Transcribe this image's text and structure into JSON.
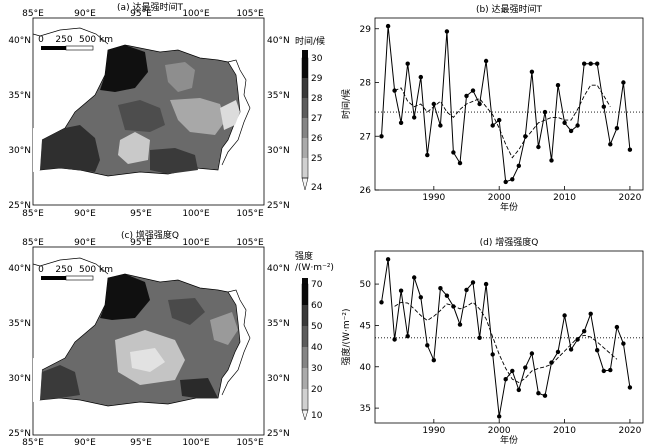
{
  "maps": [
    {
      "title": "(a) 达最强时间T",
      "lon_ticks": [
        "85°E",
        "90°E",
        "95°E",
        "100°E",
        "105°E"
      ],
      "lat_ticks_left": [
        "40°N",
        "35°N",
        "30°N",
        "25°N"
      ],
      "lat_ticks_right": [
        "40°N",
        "35°N",
        "30°N",
        "25°N"
      ],
      "scale_labels": [
        "0",
        "250",
        "500 km"
      ],
      "colorbar_title": "时间/候",
      "colorbar_ticks": [
        "30",
        "29",
        "28",
        "27",
        "26",
        "25",
        "24"
      ]
    },
    {
      "title": "(c) 增强强度Q",
      "lon_ticks": [
        "85°E",
        "90°E",
        "95°E",
        "100°E",
        "105°E"
      ],
      "lat_ticks_left": [
        "40°N",
        "35°N",
        "30°N",
        "25°N"
      ],
      "lat_ticks_right": [
        "40°N",
        "35°N",
        "30°N",
        "25°N"
      ],
      "scale_labels": [
        "0",
        "250",
        "500 km"
      ],
      "colorbar_title_line1": "强度",
      "colorbar_title_line2": "/(W·m⁻²)",
      "colorbar_ticks": [
        "70",
        "60",
        "50",
        "40",
        "30",
        "20",
        "10"
      ]
    }
  ],
  "chart_data": [
    {
      "type": "line",
      "title": "(b) 达最强时间T",
      "xlabel": "年份",
      "ylabel": "时间/候",
      "xlim": [
        1981,
        2022
      ],
      "ylim": [
        26,
        29.2
      ],
      "xticks": [
        1990,
        2000,
        2010,
        2020
      ],
      "yticks": [
        26,
        27,
        28,
        29
      ],
      "x": [
        1982,
        1983,
        1984,
        1985,
        1986,
        1987,
        1988,
        1989,
        1990,
        1991,
        1992,
        1993,
        1994,
        1995,
        1996,
        1997,
        1998,
        1999,
        2000,
        2001,
        2002,
        2003,
        2004,
        2005,
        2006,
        2007,
        2008,
        2009,
        2010,
        2011,
        2012,
        2013,
        2014,
        2015,
        2016,
        2017,
        2018,
        2019,
        2020
      ],
      "series": [
        {
          "style": "solid-markers",
          "values": [
            27.0,
            29.05,
            27.85,
            27.25,
            28.35,
            27.35,
            28.1,
            26.65,
            27.6,
            27.2,
            28.95,
            26.7,
            26.5,
            27.75,
            27.85,
            27.6,
            28.4,
            27.2,
            27.3,
            26.15,
            26.2,
            26.45,
            27.0,
            28.2,
            26.8,
            27.45,
            26.55,
            27.95,
            27.25,
            27.1,
            27.2,
            28.35,
            28.35,
            28.35,
            27.55,
            26.85,
            27.15,
            28.0,
            26.75
          ]
        },
        {
          "style": "dashed",
          "values": [
            null,
            null,
            27.85,
            27.9,
            27.65,
            27.55,
            27.6,
            27.45,
            27.55,
            27.65,
            27.45,
            27.35,
            27.5,
            27.6,
            27.65,
            27.7,
            27.55,
            27.4,
            27.15,
            26.85,
            26.6,
            26.75,
            26.95,
            27.1,
            27.25,
            27.3,
            27.35,
            27.35,
            27.3,
            27.3,
            27.5,
            27.75,
            27.95,
            27.95,
            27.75,
            27.55,
            null,
            null,
            null
          ]
        }
      ],
      "mean_line": 27.45
    },
    {
      "type": "line",
      "title": "(d) 增强强度Q",
      "xlabel": "年份",
      "ylabel": "强度/(W·m⁻²)",
      "xlim": [
        1981,
        2022
      ],
      "ylim": [
        33.2,
        54
      ],
      "xticks": [
        1990,
        2000,
        2010,
        2020
      ],
      "yticks": [
        35,
        40,
        45,
        50
      ],
      "x": [
        1982,
        1983,
        1984,
        1985,
        1986,
        1987,
        1988,
        1989,
        1990,
        1991,
        1992,
        1993,
        1994,
        1995,
        1996,
        1997,
        1998,
        1999,
        2000,
        2001,
        2002,
        2003,
        2004,
        2005,
        2006,
        2007,
        2008,
        2009,
        2010,
        2011,
        2012,
        2013,
        2014,
        2015,
        2016,
        2017,
        2018,
        2019,
        2020
      ],
      "series": [
        {
          "style": "solid-markers",
          "values": [
            47.8,
            53.0,
            43.3,
            49.2,
            43.7,
            50.8,
            48.4,
            42.6,
            40.8,
            49.5,
            48.6,
            47.3,
            45.1,
            49.3,
            50.2,
            43.5,
            50.0,
            41.5,
            34.0,
            38.5,
            39.5,
            37.2,
            39.9,
            41.6,
            36.8,
            36.5,
            40.5,
            41.8,
            46.2,
            42.1,
            43.3,
            44.3,
            46.4,
            42.0,
            39.5,
            39.6,
            44.8,
            42.8,
            37.5
          ]
        },
        {
          "style": "dashed",
          "values": [
            null,
            null,
            47.3,
            47.8,
            47.7,
            47.0,
            46.2,
            45.6,
            46.1,
            46.8,
            47.6,
            47.4,
            47.0,
            47.3,
            47.8,
            47.0,
            45.8,
            43.6,
            41.5,
            39.8,
            38.5,
            38.1,
            38.6,
            39.5,
            39.8,
            40.0,
            40.3,
            41.1,
            41.9,
            42.7,
            43.5,
            43.8,
            43.6,
            43.0,
            42.3,
            41.6,
            40.9,
            null,
            null
          ]
        }
      ],
      "mean_line": 43.5
    }
  ]
}
